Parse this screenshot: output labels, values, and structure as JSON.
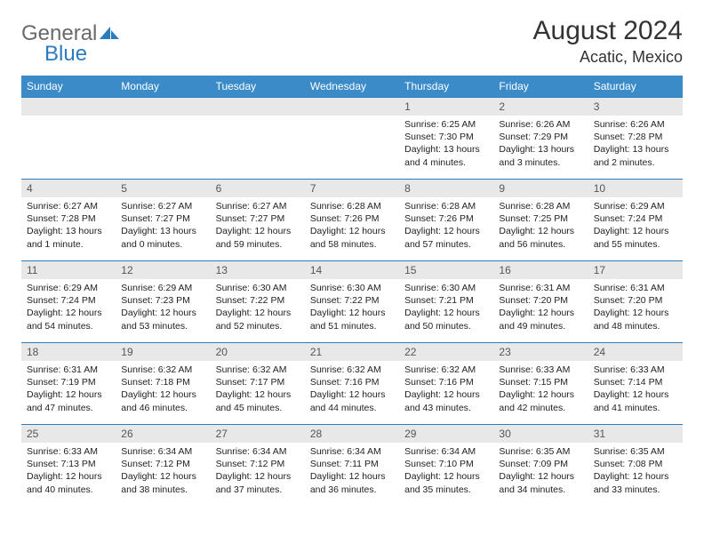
{
  "logo": {
    "general": "General",
    "blue": "Blue"
  },
  "header": {
    "month": "August 2024",
    "location": "Acatic, Mexico"
  },
  "colors": {
    "header_bg": "#3b8bc9",
    "border": "#2b7bbf",
    "daynum_bg": "#e8e8e8",
    "logo_blue": "#2b7bbf",
    "logo_gray": "#6a6a6a"
  },
  "weekdays": [
    "Sunday",
    "Monday",
    "Tuesday",
    "Wednesday",
    "Thursday",
    "Friday",
    "Saturday"
  ],
  "weeks": [
    [
      {
        "empty": true
      },
      {
        "empty": true
      },
      {
        "empty": true
      },
      {
        "empty": true
      },
      {
        "n": "1",
        "sr": "Sunrise: 6:25 AM",
        "ss": "Sunset: 7:30 PM",
        "dl": "Daylight: 13 hours and 4 minutes."
      },
      {
        "n": "2",
        "sr": "Sunrise: 6:26 AM",
        "ss": "Sunset: 7:29 PM",
        "dl": "Daylight: 13 hours and 3 minutes."
      },
      {
        "n": "3",
        "sr": "Sunrise: 6:26 AM",
        "ss": "Sunset: 7:28 PM",
        "dl": "Daylight: 13 hours and 2 minutes."
      }
    ],
    [
      {
        "n": "4",
        "sr": "Sunrise: 6:27 AM",
        "ss": "Sunset: 7:28 PM",
        "dl": "Daylight: 13 hours and 1 minute."
      },
      {
        "n": "5",
        "sr": "Sunrise: 6:27 AM",
        "ss": "Sunset: 7:27 PM",
        "dl": "Daylight: 13 hours and 0 minutes."
      },
      {
        "n": "6",
        "sr": "Sunrise: 6:27 AM",
        "ss": "Sunset: 7:27 PM",
        "dl": "Daylight: 12 hours and 59 minutes."
      },
      {
        "n": "7",
        "sr": "Sunrise: 6:28 AM",
        "ss": "Sunset: 7:26 PM",
        "dl": "Daylight: 12 hours and 58 minutes."
      },
      {
        "n": "8",
        "sr": "Sunrise: 6:28 AM",
        "ss": "Sunset: 7:26 PM",
        "dl": "Daylight: 12 hours and 57 minutes."
      },
      {
        "n": "9",
        "sr": "Sunrise: 6:28 AM",
        "ss": "Sunset: 7:25 PM",
        "dl": "Daylight: 12 hours and 56 minutes."
      },
      {
        "n": "10",
        "sr": "Sunrise: 6:29 AM",
        "ss": "Sunset: 7:24 PM",
        "dl": "Daylight: 12 hours and 55 minutes."
      }
    ],
    [
      {
        "n": "11",
        "sr": "Sunrise: 6:29 AM",
        "ss": "Sunset: 7:24 PM",
        "dl": "Daylight: 12 hours and 54 minutes."
      },
      {
        "n": "12",
        "sr": "Sunrise: 6:29 AM",
        "ss": "Sunset: 7:23 PM",
        "dl": "Daylight: 12 hours and 53 minutes."
      },
      {
        "n": "13",
        "sr": "Sunrise: 6:30 AM",
        "ss": "Sunset: 7:22 PM",
        "dl": "Daylight: 12 hours and 52 minutes."
      },
      {
        "n": "14",
        "sr": "Sunrise: 6:30 AM",
        "ss": "Sunset: 7:22 PM",
        "dl": "Daylight: 12 hours and 51 minutes."
      },
      {
        "n": "15",
        "sr": "Sunrise: 6:30 AM",
        "ss": "Sunset: 7:21 PM",
        "dl": "Daylight: 12 hours and 50 minutes."
      },
      {
        "n": "16",
        "sr": "Sunrise: 6:31 AM",
        "ss": "Sunset: 7:20 PM",
        "dl": "Daylight: 12 hours and 49 minutes."
      },
      {
        "n": "17",
        "sr": "Sunrise: 6:31 AM",
        "ss": "Sunset: 7:20 PM",
        "dl": "Daylight: 12 hours and 48 minutes."
      }
    ],
    [
      {
        "n": "18",
        "sr": "Sunrise: 6:31 AM",
        "ss": "Sunset: 7:19 PM",
        "dl": "Daylight: 12 hours and 47 minutes."
      },
      {
        "n": "19",
        "sr": "Sunrise: 6:32 AM",
        "ss": "Sunset: 7:18 PM",
        "dl": "Daylight: 12 hours and 46 minutes."
      },
      {
        "n": "20",
        "sr": "Sunrise: 6:32 AM",
        "ss": "Sunset: 7:17 PM",
        "dl": "Daylight: 12 hours and 45 minutes."
      },
      {
        "n": "21",
        "sr": "Sunrise: 6:32 AM",
        "ss": "Sunset: 7:16 PM",
        "dl": "Daylight: 12 hours and 44 minutes."
      },
      {
        "n": "22",
        "sr": "Sunrise: 6:32 AM",
        "ss": "Sunset: 7:16 PM",
        "dl": "Daylight: 12 hours and 43 minutes."
      },
      {
        "n": "23",
        "sr": "Sunrise: 6:33 AM",
        "ss": "Sunset: 7:15 PM",
        "dl": "Daylight: 12 hours and 42 minutes."
      },
      {
        "n": "24",
        "sr": "Sunrise: 6:33 AM",
        "ss": "Sunset: 7:14 PM",
        "dl": "Daylight: 12 hours and 41 minutes."
      }
    ],
    [
      {
        "n": "25",
        "sr": "Sunrise: 6:33 AM",
        "ss": "Sunset: 7:13 PM",
        "dl": "Daylight: 12 hours and 40 minutes."
      },
      {
        "n": "26",
        "sr": "Sunrise: 6:34 AM",
        "ss": "Sunset: 7:12 PM",
        "dl": "Daylight: 12 hours and 38 minutes."
      },
      {
        "n": "27",
        "sr": "Sunrise: 6:34 AM",
        "ss": "Sunset: 7:12 PM",
        "dl": "Daylight: 12 hours and 37 minutes."
      },
      {
        "n": "28",
        "sr": "Sunrise: 6:34 AM",
        "ss": "Sunset: 7:11 PM",
        "dl": "Daylight: 12 hours and 36 minutes."
      },
      {
        "n": "29",
        "sr": "Sunrise: 6:34 AM",
        "ss": "Sunset: 7:10 PM",
        "dl": "Daylight: 12 hours and 35 minutes."
      },
      {
        "n": "30",
        "sr": "Sunrise: 6:35 AM",
        "ss": "Sunset: 7:09 PM",
        "dl": "Daylight: 12 hours and 34 minutes."
      },
      {
        "n": "31",
        "sr": "Sunrise: 6:35 AM",
        "ss": "Sunset: 7:08 PM",
        "dl": "Daylight: 12 hours and 33 minutes."
      }
    ]
  ]
}
